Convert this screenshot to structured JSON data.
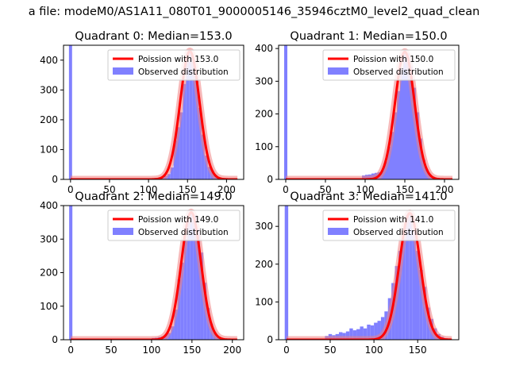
{
  "figure": {
    "suptitle": "a file: modeM0/AS1A11_080T01_9000005146_35946cztM0_level2_quad_clean"
  },
  "colors": {
    "hist": "#8080ff",
    "fit": "#ff0000",
    "fit_halo": "#f08080",
    "axis": "#000000",
    "legend_border": "#cccccc"
  },
  "chart_data": [
    {
      "type": "bar",
      "title": "Quadrant 0: Median=153.0",
      "xlim": [
        -9,
        222
      ],
      "ylim": [
        0,
        450
      ],
      "xticks": [
        0,
        50,
        100,
        150,
        200
      ],
      "yticks": [
        0,
        100,
        200,
        300,
        400
      ],
      "legend": [
        "Poission with 153.0",
        "Observed distribution"
      ],
      "legend_position": "top-right",
      "poisson_mean": 153.0,
      "poisson_peak": 430,
      "spike": {
        "x": 0,
        "height": 450
      },
      "bin_width": 4,
      "bins": [
        [
          100,
          2
        ],
        [
          104,
          3
        ],
        [
          108,
          5
        ],
        [
          112,
          4
        ],
        [
          116,
          5
        ],
        [
          120,
          12
        ],
        [
          124,
          18
        ],
        [
          128,
          40
        ],
        [
          132,
          130
        ],
        [
          136,
          175
        ],
        [
          140,
          225
        ],
        [
          144,
          320
        ],
        [
          148,
          400
        ],
        [
          152,
          430
        ],
        [
          156,
          395
        ],
        [
          160,
          345
        ],
        [
          164,
          240
        ],
        [
          168,
          150
        ],
        [
          172,
          80
        ],
        [
          176,
          42
        ],
        [
          180,
          30
        ],
        [
          184,
          15
        ],
        [
          188,
          8
        ],
        [
          192,
          4
        ],
        [
          196,
          2
        ],
        [
          200,
          1
        ]
      ]
    },
    {
      "type": "bar",
      "title": "Quadrant 1: Median=150.0",
      "xlim": [
        -9,
        218
      ],
      "ylim": [
        0,
        410
      ],
      "xticks": [
        0,
        50,
        100,
        150,
        200
      ],
      "yticks": [
        0,
        100,
        200,
        300,
        400
      ],
      "legend": [
        "Poission with 150.0",
        "Observed distribution"
      ],
      "legend_position": "top-right",
      "poisson_mean": 150.0,
      "poisson_peak": 390,
      "spike": {
        "x": 0,
        "height": 410
      },
      "bin_width": 4,
      "bins": [
        [
          96,
          12
        ],
        [
          100,
          14
        ],
        [
          104,
          15
        ],
        [
          108,
          18
        ],
        [
          112,
          20
        ],
        [
          116,
          22
        ],
        [
          120,
          28
        ],
        [
          124,
          55
        ],
        [
          128,
          100
        ],
        [
          132,
          145
        ],
        [
          136,
          205
        ],
        [
          140,
          270
        ],
        [
          144,
          340
        ],
        [
          148,
          390
        ],
        [
          152,
          385
        ],
        [
          156,
          345
        ],
        [
          160,
          280
        ],
        [
          164,
          205
        ],
        [
          168,
          125
        ],
        [
          172,
          60
        ],
        [
          176,
          30
        ],
        [
          180,
          15
        ],
        [
          184,
          8
        ],
        [
          188,
          4
        ],
        [
          192,
          2
        ]
      ]
    },
    {
      "type": "bar",
      "title": "Quadrant 2: Median=149.0",
      "xlim": [
        -9,
        214
      ],
      "ylim": [
        0,
        400
      ],
      "xticks": [
        0,
        50,
        100,
        150,
        200
      ],
      "yticks": [
        0,
        100,
        200,
        300,
        400
      ],
      "legend": [
        "Poission with 149.0",
        "Observed distribution"
      ],
      "legend_position": "top-right",
      "poisson_mean": 149.0,
      "poisson_peak": 380,
      "spike": {
        "x": 0,
        "height": 400
      },
      "bin_width": 4,
      "bins": [
        [
          92,
          2
        ],
        [
          96,
          3
        ],
        [
          100,
          5
        ],
        [
          104,
          6
        ],
        [
          108,
          8
        ],
        [
          112,
          10
        ],
        [
          116,
          15
        ],
        [
          120,
          20
        ],
        [
          124,
          40
        ],
        [
          128,
          90
        ],
        [
          132,
          180
        ],
        [
          136,
          230
        ],
        [
          140,
          300
        ],
        [
          144,
          360
        ],
        [
          148,
          380
        ],
        [
          152,
          370
        ],
        [
          156,
          330
        ],
        [
          160,
          260
        ],
        [
          164,
          170
        ],
        [
          168,
          95
        ],
        [
          172,
          48
        ],
        [
          176,
          22
        ],
        [
          180,
          10
        ],
        [
          184,
          5
        ],
        [
          188,
          2
        ]
      ]
    },
    {
      "type": "bar",
      "title": "Quadrant 3: Median=141.0",
      "xlim": [
        -9,
        197
      ],
      "ylim": [
        0,
        355
      ],
      "xticks": [
        0,
        50,
        100,
        150
      ],
      "yticks": [
        0,
        100,
        200,
        300
      ],
      "legend": [
        "Poission with 141.0",
        "Observed distribution"
      ],
      "legend_position": "top-right",
      "poisson_mean": 141.0,
      "poisson_peak": 335,
      "spike": {
        "x": 0,
        "height": 355
      },
      "bin_width": 4,
      "bins": [
        [
          44,
          10
        ],
        [
          48,
          15
        ],
        [
          52,
          12
        ],
        [
          56,
          15
        ],
        [
          60,
          20
        ],
        [
          64,
          18
        ],
        [
          68,
          22
        ],
        [
          72,
          30
        ],
        [
          76,
          25
        ],
        [
          80,
          28
        ],
        [
          84,
          35
        ],
        [
          88,
          30
        ],
        [
          92,
          40
        ],
        [
          96,
          38
        ],
        [
          100,
          45
        ],
        [
          104,
          50
        ],
        [
          108,
          60
        ],
        [
          112,
          75
        ],
        [
          116,
          110
        ],
        [
          120,
          150
        ],
        [
          124,
          195
        ],
        [
          128,
          235
        ],
        [
          132,
          270
        ],
        [
          136,
          330
        ],
        [
          140,
          335
        ],
        [
          144,
          290
        ],
        [
          148,
          235
        ],
        [
          152,
          185
        ],
        [
          156,
          140
        ],
        [
          160,
          85
        ],
        [
          164,
          55
        ],
        [
          168,
          30
        ],
        [
          172,
          15
        ],
        [
          176,
          8
        ],
        [
          180,
          4
        ]
      ]
    }
  ]
}
